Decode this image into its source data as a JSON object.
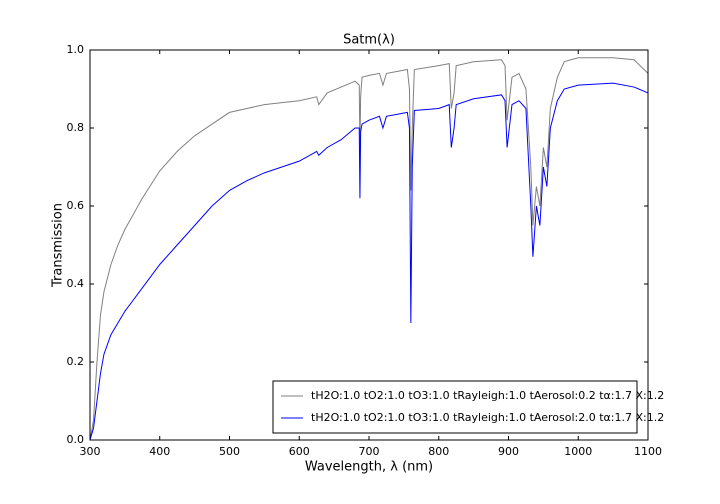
{
  "chart_data": {
    "type": "line",
    "title": "Satm(λ)",
    "x_label": "Wavelength, λ (nm)",
    "y_label": "Transmission",
    "x": [
      300,
      305,
      310,
      315,
      320,
      330,
      340,
      350,
      375,
      400,
      425,
      450,
      475,
      500,
      525,
      550,
      575,
      600,
      625,
      628,
      640,
      660,
      680,
      686,
      687,
      688,
      690,
      700,
      715,
      720,
      725,
      740,
      755,
      758,
      760,
      762,
      765,
      800,
      815,
      818,
      822,
      825,
      850,
      890,
      895,
      898,
      905,
      915,
      925,
      932,
      935,
      940,
      945,
      950,
      955,
      960,
      970,
      980,
      1000,
      1050,
      1080,
      1100
    ],
    "series": [
      {
        "name": "tH2O:1.0 tO2:1.0 tO3:1.0 tRayleigh:1.0 tAerosol:0.2 tα:1.7 X:1.2",
        "color": "#808080",
        "values": [
          0.0,
          0.05,
          0.2,
          0.32,
          0.38,
          0.45,
          0.5,
          0.54,
          0.62,
          0.69,
          0.74,
          0.78,
          0.81,
          0.84,
          0.85,
          0.86,
          0.865,
          0.87,
          0.88,
          0.86,
          0.89,
          0.905,
          0.92,
          0.91,
          0.75,
          0.88,
          0.93,
          0.935,
          0.94,
          0.91,
          0.94,
          0.945,
          0.95,
          0.9,
          0.64,
          0.8,
          0.95,
          0.96,
          0.965,
          0.85,
          0.89,
          0.96,
          0.97,
          0.975,
          0.96,
          0.82,
          0.93,
          0.94,
          0.9,
          0.7,
          0.55,
          0.65,
          0.6,
          0.75,
          0.7,
          0.85,
          0.93,
          0.97,
          0.98,
          0.98,
          0.975,
          0.94
        ]
      },
      {
        "name": "tH2O:1.0 tO2:1.0 tO3:1.0 tRayleigh:1.0 tAerosol:2.0 tα:1.7 X:1.2",
        "color": "#0000ff",
        "values": [
          0.0,
          0.03,
          0.1,
          0.17,
          0.22,
          0.27,
          0.3,
          0.33,
          0.39,
          0.45,
          0.5,
          0.55,
          0.6,
          0.64,
          0.665,
          0.685,
          0.7,
          0.715,
          0.74,
          0.73,
          0.75,
          0.77,
          0.8,
          0.8,
          0.62,
          0.79,
          0.81,
          0.82,
          0.83,
          0.8,
          0.83,
          0.835,
          0.84,
          0.8,
          0.3,
          0.7,
          0.845,
          0.85,
          0.86,
          0.75,
          0.8,
          0.86,
          0.875,
          0.885,
          0.87,
          0.75,
          0.86,
          0.87,
          0.85,
          0.6,
          0.47,
          0.6,
          0.55,
          0.7,
          0.65,
          0.8,
          0.87,
          0.9,
          0.91,
          0.915,
          0.905,
          0.89
        ]
      }
    ],
    "xlim": [
      300,
      1100
    ],
    "xticks": [
      300,
      400,
      500,
      600,
      700,
      800,
      900,
      1000,
      1100
    ],
    "ylim": [
      0,
      1
    ],
    "yticks": [
      {
        "value": 0,
        "label": "0.0"
      },
      0.2,
      0.4,
      0.6,
      0.8,
      {
        "value": 1,
        "label": "1.0"
      }
    ],
    "legend": "lower right"
  }
}
